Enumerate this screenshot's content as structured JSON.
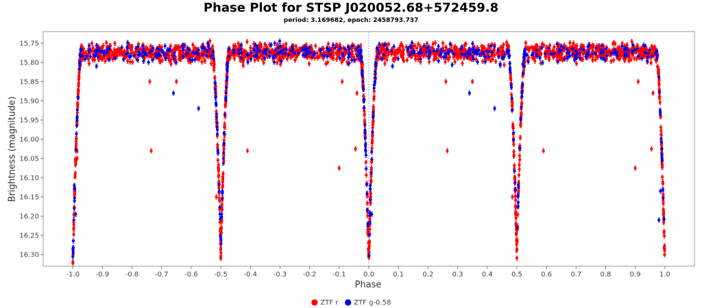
{
  "chart_data": {
    "type": "scatter",
    "title": "Phase Plot for STSP J020052.68+572459.8",
    "subtitle": "period: 3.169682, epoch: 2458793.737",
    "xlabel": "Phase",
    "ylabel": "Brightness (magnitude)",
    "xlim": [
      -1.1,
      1.1
    ],
    "ylim": [
      15.72,
      16.33
    ],
    "y_inverted": true,
    "grid": false,
    "legend_position": "bottom-center",
    "x_ticks": [
      -1.0,
      -0.9,
      -0.8,
      -0.7,
      -0.6,
      -0.5,
      -0.4,
      -0.3,
      -0.2,
      -0.1,
      0.0,
      0.1,
      0.2,
      0.3,
      0.4,
      0.5,
      0.6,
      0.7,
      0.8,
      0.9,
      1.0
    ],
    "x_tick_labels": [
      "-1.0",
      "-0.9",
      "-0.8",
      "-0.7",
      "-0.6",
      "-0.5",
      "-0.4",
      "-0.3",
      "-0.2",
      "-0.1",
      "0.0",
      "0.1",
      "0.2",
      "0.3",
      "0.4",
      "0.5",
      "0.6",
      "0.7",
      "0.8",
      "0.9",
      "1.0"
    ],
    "y_ticks": [
      15.75,
      15.8,
      15.85,
      15.9,
      15.95,
      16.0,
      16.05,
      16.1,
      16.15,
      16.2,
      16.25,
      16.3
    ],
    "y_tick_labels": [
      "15.75",
      "15.80",
      "15.85",
      "15.90",
      "15.95",
      "16.00",
      "16.05",
      "16.10",
      "16.15",
      "16.20",
      "16.25",
      "16.30"
    ],
    "reference_line_x": 0.0,
    "series": [
      {
        "name": "ZTF r",
        "color": "#ff0000",
        "baseline_mag": 15.775,
        "scatter_mag": 0.022,
        "eclipses": [
          {
            "phase": 0.0,
            "depth_mag": 0.55,
            "half_width": 0.028
          },
          {
            "phase": 0.5,
            "depth_mag": 0.52,
            "half_width": 0.028
          }
        ],
        "outliers": [
          {
            "x": -0.985,
            "y": 16.05
          },
          {
            "x": -0.735,
            "y": 16.03
          },
          {
            "x": -0.74,
            "y": 15.85
          },
          {
            "x": -0.65,
            "y": 15.85
          },
          {
            "x": -0.41,
            "y": 16.03
          },
          {
            "x": -0.1,
            "y": 16.075
          },
          {
            "x": -0.09,
            "y": 15.85
          },
          {
            "x": -0.045,
            "y": 16.025
          },
          {
            "x": -0.04,
            "y": 15.88
          },
          {
            "x": 0.265,
            "y": 16.03
          },
          {
            "x": 0.26,
            "y": 15.85
          },
          {
            "x": 0.35,
            "y": 15.85
          },
          {
            "x": 0.59,
            "y": 16.03
          },
          {
            "x": 0.9,
            "y": 16.075
          },
          {
            "x": 0.91,
            "y": 15.85
          },
          {
            "x": 0.955,
            "y": 16.025
          },
          {
            "x": 0.96,
            "y": 15.88
          },
          {
            "x": -0.515,
            "y": 16.15
          },
          {
            "x": 0.485,
            "y": 16.15
          },
          {
            "x": -0.985,
            "y": 16.03
          }
        ]
      },
      {
        "name": "ZTF g-0.58",
        "color": "#0000ee",
        "baseline_mag": 15.775,
        "scatter_mag": 0.022,
        "eclipses": [
          {
            "phase": 0.0,
            "depth_mag": 0.54,
            "half_width": 0.028
          },
          {
            "phase": 0.5,
            "depth_mag": 0.5,
            "half_width": 0.028
          }
        ],
        "outliers": [
          {
            "x": -0.995,
            "y": 16.13
          },
          {
            "x": -0.995,
            "y": 16.12
          },
          {
            "x": -0.99,
            "y": 16.195
          },
          {
            "x": -0.66,
            "y": 15.88
          },
          {
            "x": -0.575,
            "y": 15.92
          },
          {
            "x": -0.48,
            "y": 15.805
          },
          {
            "x": 0.005,
            "y": 16.13
          },
          {
            "x": 0.005,
            "y": 16.12
          },
          {
            "x": 0.01,
            "y": 16.195
          },
          {
            "x": 0.34,
            "y": 15.88
          },
          {
            "x": 0.425,
            "y": 15.92
          },
          {
            "x": 0.52,
            "y": 15.805
          },
          {
            "x": 0.985,
            "y": 16.135
          },
          {
            "x": 0.98,
            "y": 16.21
          },
          {
            "x": -0.92,
            "y": 15.81
          },
          {
            "x": 0.08,
            "y": 15.81
          }
        ]
      }
    ]
  }
}
